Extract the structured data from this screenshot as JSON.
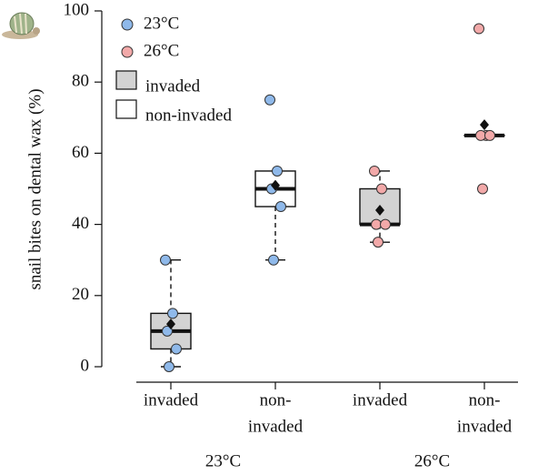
{
  "chart_data": {
    "type": "box",
    "y_label": "snail bites on dental wax (%)",
    "ylim": [
      0,
      100
    ],
    "yticks": [
      0,
      20,
      40,
      60,
      80,
      100
    ],
    "categories": [
      [
        "invaded"
      ],
      [
        "non-",
        "invaded"
      ],
      [
        "invaded"
      ],
      [
        "non-",
        "invaded"
      ]
    ],
    "groups": [
      "23°C",
      "26°C"
    ],
    "fill_legend": [
      {
        "name": "invaded",
        "color": "#d3d3d3"
      },
      {
        "name": "non-invaded",
        "color": "#ffffff"
      }
    ],
    "series": [
      {
        "name": "23°C",
        "color": "#8fb9ea",
        "boxes": [
          {
            "min": 0,
            "q1": 5,
            "median": 10,
            "q3": 15,
            "max": 30,
            "mean": 12,
            "points": [
              30,
              15,
              10,
              5,
              0
            ]
          },
          {
            "min": 30,
            "q1": 45,
            "median": 50,
            "q3": 55,
            "max": 55,
            "mean": 51,
            "points": [
              75,
              55,
              50,
              45,
              30
            ]
          }
        ]
      },
      {
        "name": "26°C",
        "color": "#f2a9a9",
        "boxes": [
          {
            "min": 35,
            "q1": 40,
            "median": 40,
            "q3": 50,
            "max": 55,
            "mean": 44,
            "points": [
              55,
              50,
              40,
              40,
              35
            ]
          },
          {
            "min": 65,
            "q1": 65,
            "median": 65,
            "q3": 65,
            "max": 65,
            "mean": 68,
            "points": [
              95,
              65,
              65,
              65,
              50
            ]
          }
        ]
      }
    ]
  }
}
